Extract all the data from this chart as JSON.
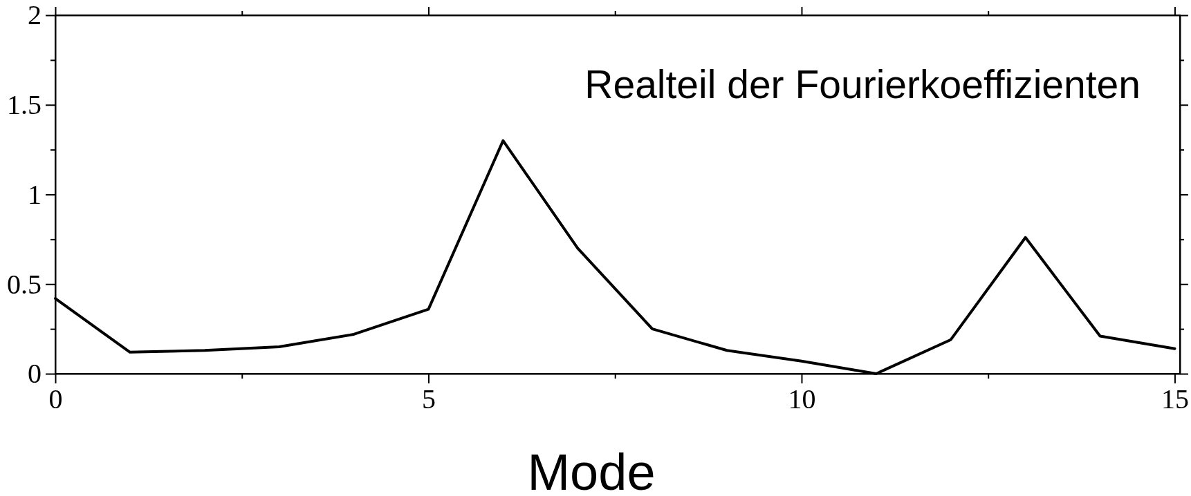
{
  "chart_data": {
    "type": "line",
    "title": "Realteil der Fourierkoeffizienten",
    "xlabel": "Mode",
    "x": [
      0,
      1,
      2,
      3,
      4,
      5,
      6,
      7,
      8,
      9,
      10,
      11,
      12,
      13,
      14,
      15
    ],
    "series": [
      {
        "color": "#000000",
        "values": [
          0.42,
          0.12,
          0.13,
          0.15,
          0.22,
          0.36,
          1.3,
          0.7,
          0.25,
          0.13,
          0.07,
          0.0,
          0.19,
          0.76,
          0.21,
          0.14
        ]
      }
    ],
    "xlim": [
      0,
      15.07
    ],
    "ylim": [
      0,
      2
    ],
    "xticks": [
      0,
      {
        "value": 2.5,
        "label": null
      },
      5,
      {
        "value": 7.5,
        "label": null
      },
      10,
      {
        "value": 12.5,
        "label": null
      },
      15
    ],
    "yticks": [
      0,
      {
        "value": 0.25,
        "label": null
      },
      0.5,
      {
        "value": 0.75,
        "label": null
      },
      1,
      {
        "value": 1.25,
        "label": null
      },
      1.5,
      {
        "value": 1.75,
        "label": null
      },
      2
    ],
    "marker": "none",
    "line_style": "solid"
  }
}
